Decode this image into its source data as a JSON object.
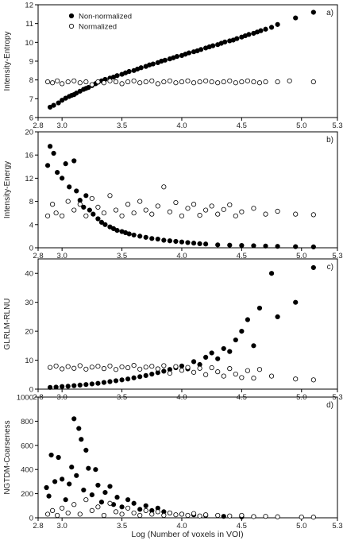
{
  "figure": {
    "xlabel": "Log (Number of voxels in VOI)",
    "legend": {
      "items": [
        {
          "label": "Non-normalized",
          "marker": "filled"
        },
        {
          "label": "Normalized",
          "marker": "open"
        }
      ]
    },
    "colors": {
      "filled": "#000000",
      "open": "#ffffff",
      "stroke": "#000000"
    }
  },
  "chart_data": [
    {
      "type": "scatter",
      "panel": "a)",
      "ylabel": "Intensity-Entropy",
      "xlim": [
        2.8,
        5.3
      ],
      "ylim": [
        6,
        12
      ],
      "xticks": [
        "2.8",
        "3.0",
        "3.5",
        "4.0",
        "4.5",
        "5.0",
        "5.3"
      ],
      "yticks": [
        "6",
        "7",
        "8",
        "9",
        "10",
        "11",
        "12"
      ],
      "series": [
        {
          "name": "Non-normalized",
          "marker": "filled",
          "x": [
            2.9,
            2.93,
            2.97,
            3.0,
            3.03,
            3.06,
            3.08,
            3.1,
            3.12,
            3.15,
            3.18,
            3.2,
            3.22,
            3.25,
            3.28,
            3.3,
            3.33,
            3.36,
            3.4,
            3.43,
            3.46,
            3.5,
            3.53,
            3.56,
            3.6,
            3.63,
            3.66,
            3.7,
            3.73,
            3.76,
            3.8,
            3.83,
            3.86,
            3.9,
            3.93,
            3.96,
            4.0,
            4.03,
            4.06,
            4.1,
            4.13,
            4.16,
            4.2,
            4.23,
            4.26,
            4.3,
            4.33,
            4.36,
            4.4,
            4.43,
            4.46,
            4.5,
            4.53,
            4.56,
            4.6,
            4.63,
            4.66,
            4.7,
            4.75,
            4.8,
            4.95,
            5.1
          ],
          "y": [
            6.55,
            6.65,
            6.78,
            6.92,
            7.03,
            7.12,
            7.18,
            7.22,
            7.3,
            7.4,
            7.5,
            7.55,
            7.6,
            7.7,
            7.8,
            7.88,
            7.95,
            8.03,
            8.1,
            8.15,
            8.23,
            8.3,
            8.38,
            8.45,
            8.5,
            8.58,
            8.65,
            8.72,
            8.8,
            8.85,
            8.92,
            9.0,
            9.05,
            9.12,
            9.18,
            9.25,
            9.3,
            9.37,
            9.44,
            9.5,
            9.55,
            9.62,
            9.7,
            9.76,
            9.82,
            9.88,
            9.95,
            10.02,
            10.08,
            10.12,
            10.2,
            10.28,
            10.35,
            10.42,
            10.48,
            10.55,
            10.62,
            10.7,
            10.8,
            10.95,
            11.3,
            11.6
          ]
        },
        {
          "name": "Normalized",
          "marker": "open",
          "x": [
            2.88,
            2.92,
            2.96,
            3.0,
            3.05,
            3.1,
            3.15,
            3.2,
            3.25,
            3.3,
            3.35,
            3.4,
            3.45,
            3.5,
            3.55,
            3.6,
            3.65,
            3.7,
            3.75,
            3.8,
            3.85,
            3.9,
            3.95,
            4.0,
            4.05,
            4.1,
            4.15,
            4.2,
            4.25,
            4.3,
            4.35,
            4.4,
            4.45,
            4.5,
            4.55,
            4.6,
            4.65,
            4.7,
            4.8,
            4.9,
            5.1
          ],
          "y": [
            7.9,
            7.85,
            7.95,
            7.8,
            7.9,
            7.95,
            7.85,
            7.9,
            7.75,
            7.9,
            7.85,
            7.95,
            7.9,
            7.8,
            7.9,
            7.95,
            7.85,
            7.9,
            7.95,
            7.8,
            7.9,
            7.95,
            7.85,
            7.9,
            7.95,
            7.85,
            7.9,
            7.95,
            7.9,
            7.85,
            7.9,
            7.95,
            7.85,
            7.9,
            7.95,
            7.9,
            7.85,
            7.9,
            7.9,
            7.95,
            7.9
          ]
        }
      ]
    },
    {
      "type": "scatter",
      "panel": "b)",
      "ylabel": "Intensity-Energy",
      "xlim": [
        2.8,
        5.3
      ],
      "ylim": [
        0,
        20
      ],
      "xticks": [
        "2.8",
        "3.0",
        "3.5",
        "4.0",
        "4.5",
        "5.0",
        "5.3"
      ],
      "yticks": [
        "0",
        "4",
        "8",
        "12",
        "16",
        "20"
      ],
      "series": [
        {
          "name": "Non-normalized",
          "marker": "filled",
          "x": [
            2.88,
            2.9,
            2.93,
            2.96,
            3.0,
            3.03,
            3.06,
            3.1,
            3.12,
            3.15,
            3.18,
            3.2,
            3.23,
            3.26,
            3.3,
            3.33,
            3.36,
            3.4,
            3.43,
            3.46,
            3.5,
            3.53,
            3.56,
            3.6,
            3.65,
            3.7,
            3.75,
            3.8,
            3.85,
            3.9,
            3.95,
            4.0,
            4.05,
            4.1,
            4.15,
            4.2,
            4.3,
            4.4,
            4.5,
            4.6,
            4.7,
            4.8,
            4.95,
            5.1
          ],
          "y": [
            14.2,
            17.5,
            16.3,
            13.0,
            12.0,
            14.5,
            10.5,
            15.0,
            9.8,
            8.2,
            7.0,
            9.0,
            6.5,
            5.8,
            5.0,
            4.4,
            4.0,
            3.6,
            3.3,
            3.0,
            2.8,
            2.6,
            2.4,
            2.2,
            2.0,
            1.8,
            1.6,
            1.5,
            1.3,
            1.2,
            1.1,
            1.0,
            0.9,
            0.8,
            0.7,
            0.65,
            0.5,
            0.45,
            0.4,
            0.35,
            0.3,
            0.25,
            0.2,
            0.15
          ]
        },
        {
          "name": "Normalized",
          "marker": "open",
          "x": [
            2.88,
            2.92,
            2.95,
            3.0,
            3.05,
            3.1,
            3.15,
            3.2,
            3.25,
            3.3,
            3.35,
            3.4,
            3.45,
            3.5,
            3.55,
            3.6,
            3.65,
            3.7,
            3.75,
            3.8,
            3.85,
            3.9,
            3.95,
            4.0,
            4.05,
            4.1,
            4.15,
            4.2,
            4.25,
            4.3,
            4.35,
            4.4,
            4.45,
            4.5,
            4.6,
            4.7,
            4.8,
            4.95,
            5.1
          ],
          "y": [
            5.5,
            7.5,
            6.0,
            5.5,
            8.0,
            6.5,
            7.5,
            5.5,
            8.5,
            7.0,
            6.0,
            9.0,
            6.5,
            5.5,
            7.5,
            6.0,
            8.0,
            6.5,
            5.8,
            7.2,
            10.5,
            6.2,
            7.8,
            5.5,
            6.8,
            7.5,
            5.6,
            6.5,
            7.2,
            5.8,
            6.6,
            7.4,
            5.5,
            6.2,
            6.8,
            5.8,
            6.3,
            5.8,
            5.7
          ]
        }
      ]
    },
    {
      "type": "scatter",
      "panel": "c)",
      "ylabel": "GLRLM-RLNU",
      "xlim": [
        2.8,
        5.3
      ],
      "ylim": [
        0,
        45
      ],
      "xticks": [
        "2.8",
        "3.0",
        "3.5",
        "4.0",
        "4.5",
        "5.0",
        "5.3"
      ],
      "yticks": [
        "0",
        "10",
        "20",
        "30",
        "40"
      ],
      "series": [
        {
          "name": "Non-normalized",
          "marker": "filled",
          "x": [
            2.9,
            2.95,
            3.0,
            3.05,
            3.1,
            3.15,
            3.2,
            3.25,
            3.3,
            3.35,
            3.4,
            3.45,
            3.5,
            3.55,
            3.6,
            3.65,
            3.7,
            3.75,
            3.8,
            3.85,
            3.9,
            3.95,
            4.0,
            4.05,
            4.1,
            4.15,
            4.2,
            4.25,
            4.3,
            4.35,
            4.4,
            4.45,
            4.5,
            4.55,
            4.6,
            4.65,
            4.75,
            4.8,
            4.95,
            5.1
          ],
          "y": [
            0.6,
            0.7,
            0.9,
            1.0,
            1.2,
            1.4,
            1.6,
            1.8,
            2.0,
            2.3,
            2.6,
            2.9,
            3.2,
            3.5,
            3.9,
            4.3,
            4.7,
            5.2,
            5.7,
            6.2,
            6.8,
            7.4,
            8.0,
            7.0,
            9.5,
            8.5,
            11.0,
            12.5,
            10.5,
            14.0,
            13.0,
            17.0,
            20.0,
            24.0,
            15.0,
            28.0,
            40.0,
            25.0,
            30.0,
            42.0
          ]
        },
        {
          "name": "Normalized",
          "marker": "open",
          "x": [
            2.9,
            2.95,
            3.0,
            3.05,
            3.1,
            3.15,
            3.2,
            3.25,
            3.3,
            3.35,
            3.4,
            3.45,
            3.5,
            3.55,
            3.6,
            3.65,
            3.7,
            3.75,
            3.8,
            3.85,
            3.9,
            3.95,
            4.0,
            4.05,
            4.1,
            4.15,
            4.2,
            4.25,
            4.3,
            4.35,
            4.4,
            4.45,
            4.5,
            4.55,
            4.6,
            4.65,
            4.75,
            4.95,
            5.1
          ],
          "y": [
            7.5,
            8.0,
            7.0,
            7.8,
            7.2,
            8.1,
            6.9,
            7.6,
            7.9,
            7.1,
            8.0,
            6.8,
            7.7,
            7.4,
            8.2,
            6.9,
            7.6,
            7.9,
            7.0,
            8.1,
            5.5,
            7.8,
            6.5,
            7.5,
            5.8,
            7.2,
            5.0,
            7.4,
            6.0,
            4.5,
            7.1,
            5.2,
            4.0,
            6.4,
            3.8,
            6.8,
            4.5,
            3.5,
            3.2
          ]
        }
      ]
    },
    {
      "type": "scatter",
      "panel": "d)",
      "ylabel": "NGTDM-Coarseness",
      "xlim": [
        2.8,
        5.3
      ],
      "ylim": [
        0,
        1000
      ],
      "xticks": [
        "2.8",
        "3.0",
        "3.5",
        "4.0",
        "4.5",
        "5.0",
        "5.3"
      ],
      "yticks": [
        "0",
        "200",
        "400",
        "600",
        "800",
        "1000"
      ],
      "series": [
        {
          "name": "Non-normalized",
          "marker": "filled",
          "x": [
            2.87,
            2.89,
            2.91,
            2.94,
            2.97,
            3.0,
            3.03,
            3.06,
            3.08,
            3.1,
            3.12,
            3.14,
            3.16,
            3.18,
            3.2,
            3.22,
            3.25,
            3.28,
            3.3,
            3.33,
            3.36,
            3.4,
            3.43,
            3.46,
            3.5,
            3.55,
            3.6,
            3.65,
            3.7,
            3.75,
            3.8,
            3.85,
            3.9,
            4.0,
            4.1,
            4.2,
            4.35,
            4.5
          ],
          "y": [
            250,
            180,
            520,
            300,
            500,
            320,
            150,
            280,
            420,
            820,
            350,
            740,
            650,
            230,
            560,
            410,
            190,
            400,
            270,
            130,
            210,
            260,
            110,
            170,
            90,
            150,
            120,
            70,
            100,
            60,
            80,
            50,
            40,
            30,
            25,
            20,
            12,
            8
          ]
        },
        {
          "name": "Normalized",
          "marker": "open",
          "x": [
            2.88,
            2.92,
            2.96,
            3.0,
            3.05,
            3.1,
            3.15,
            3.2,
            3.25,
            3.3,
            3.35,
            3.4,
            3.45,
            3.5,
            3.55,
            3.6,
            3.65,
            3.7,
            3.75,
            3.8,
            3.85,
            3.9,
            3.95,
            4.0,
            4.05,
            4.1,
            4.15,
            4.2,
            4.3,
            4.4,
            4.5,
            4.6,
            4.7,
            4.8,
            5.0,
            5.1
          ],
          "y": [
            30,
            60,
            20,
            80,
            40,
            110,
            30,
            150,
            60,
            90,
            20,
            120,
            50,
            30,
            80,
            40,
            20,
            60,
            30,
            50,
            20,
            40,
            25,
            30,
            20,
            35,
            15,
            25,
            20,
            15,
            20,
            10,
            12,
            8,
            6,
            5
          ]
        }
      ]
    }
  ]
}
